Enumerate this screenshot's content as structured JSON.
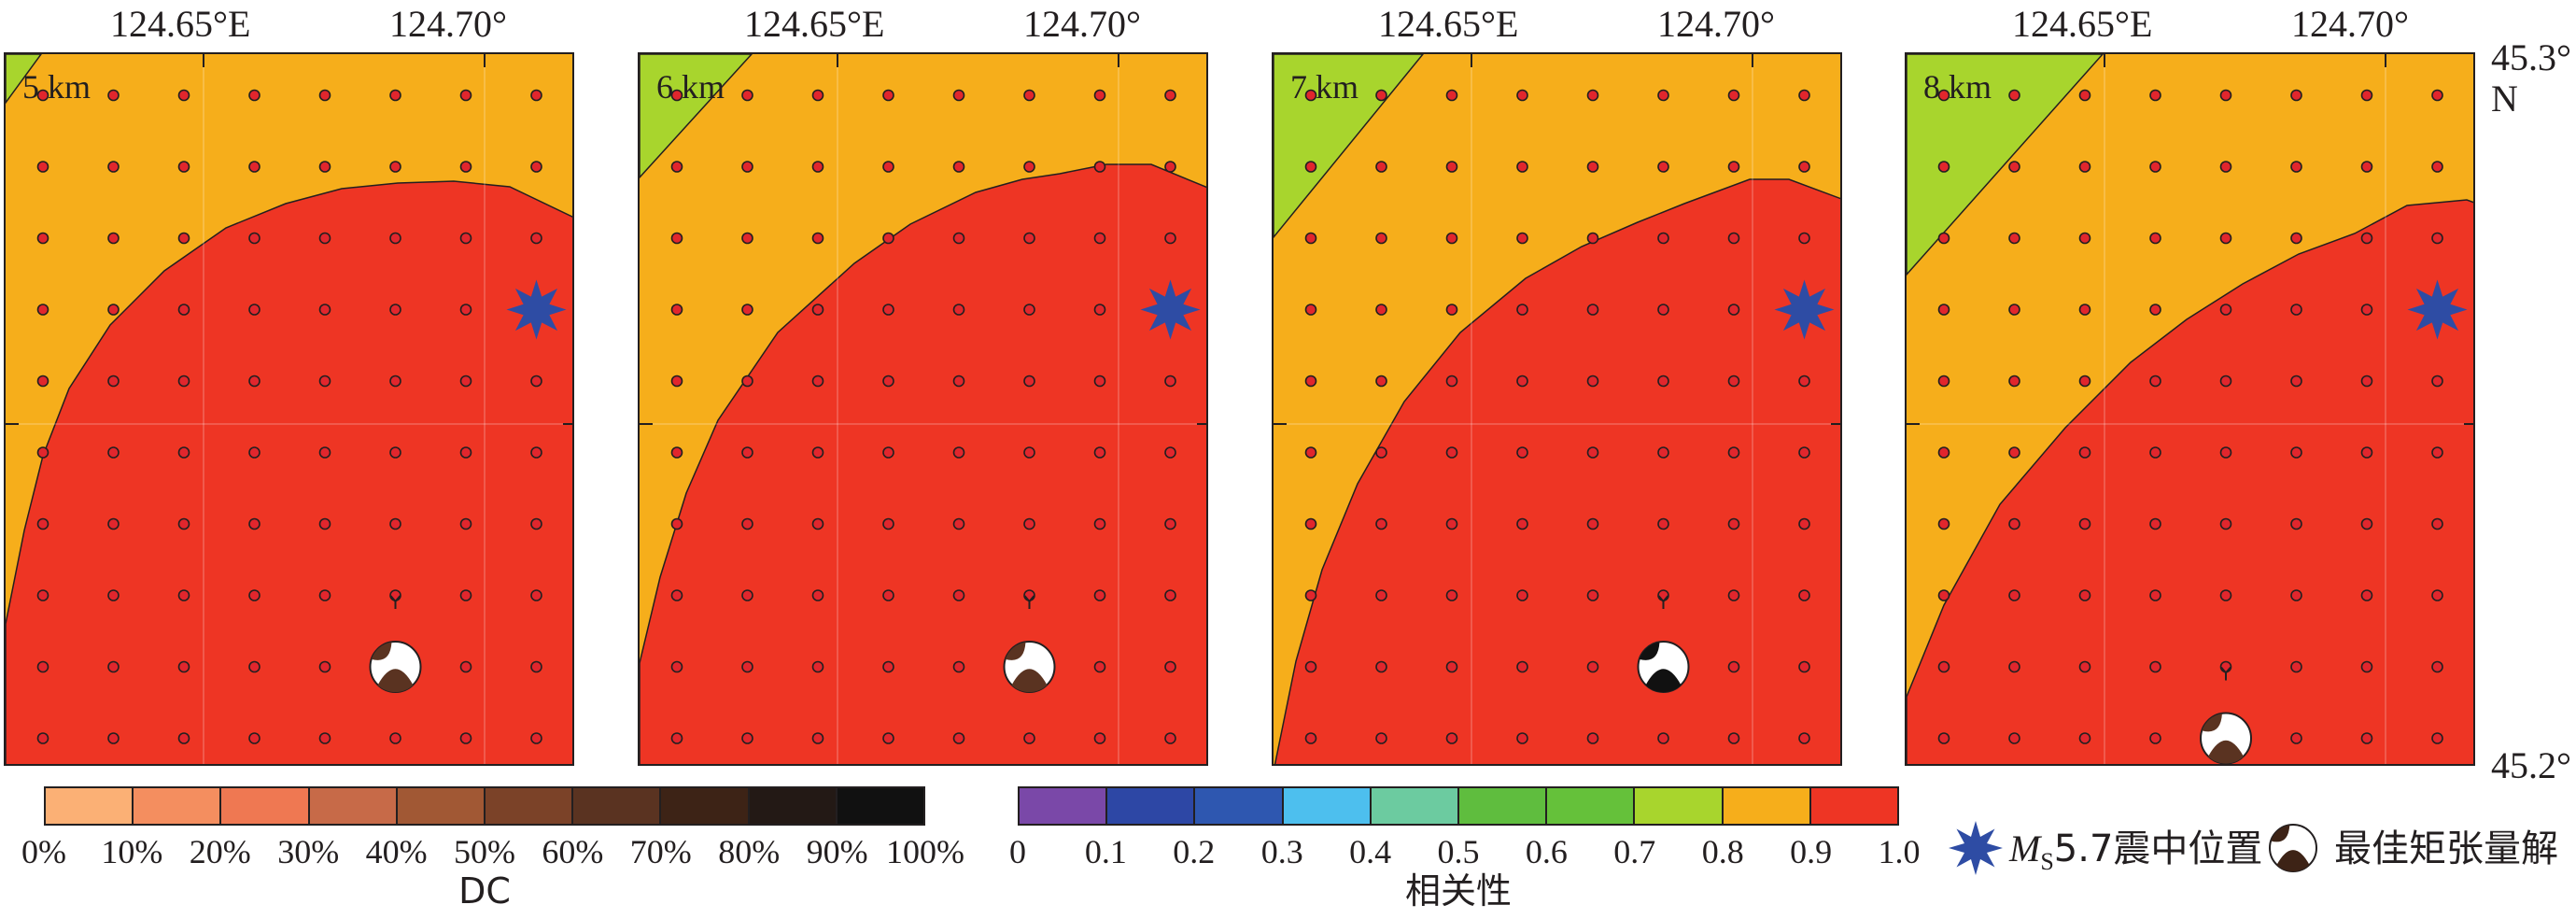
{
  "lon_ticks": [
    {
      "label": "124.65°E"
    },
    {
      "label": "124.70°"
    },
    {
      "label": "124.65°E"
    },
    {
      "label": "124.70°"
    },
    {
      "label": "124.65°E"
    },
    {
      "label": "124.70°"
    },
    {
      "label": "124.65°E"
    },
    {
      "label": "124.70°"
    }
  ],
  "lat_ticks": {
    "top": "45.3°",
    "top_suffix": "N",
    "bottom": "45.2°"
  },
  "panels": [
    {
      "depth_label": "5 km",
      "best_solution": {
        "row": 8,
        "col": 5
      },
      "epicenter": {
        "row": 3,
        "col": 7
      }
    },
    {
      "depth_label": "6 km",
      "best_solution": {
        "row": 8,
        "col": 5
      },
      "epicenter": {
        "row": 3,
        "col": 7
      }
    },
    {
      "depth_label": "7 km",
      "best_solution": {
        "row": 8,
        "col": 5
      },
      "epicenter": {
        "row": 3,
        "col": 7
      }
    },
    {
      "depth_label": "8 km",
      "best_solution": {
        "row": 9,
        "col": 4
      },
      "epicenter": {
        "row": 3,
        "col": 7
      }
    }
  ],
  "dc_colorbar": {
    "colors": [
      "#fbb075",
      "#f48e5f",
      "#ef7852",
      "#c76a48",
      "#a15834",
      "#7b4228",
      "#5a3321",
      "#3d2316",
      "#231915",
      "#111111"
    ],
    "ticks": [
      "0%",
      "10%",
      "20%",
      "30%",
      "40%",
      "50%",
      "60%",
      "70%",
      "80%",
      "90%",
      "100%"
    ],
    "title": "DC"
  },
  "corr_colorbar": {
    "colors": [
      "#7a48a8",
      "#2d47a5",
      "#2e57b0",
      "#4dbfee",
      "#6ccba0",
      "#5fbd3e",
      "#65c13a",
      "#a8d52d",
      "#f6ae1b",
      "#ee3524"
    ],
    "ticks": [
      "0",
      "0.1",
      "0.2",
      "0.3",
      "0.4",
      "0.5",
      "0.6",
      "0.7",
      "0.8",
      "0.9",
      "1.0"
    ],
    "title": "相关性"
  },
  "legend": {
    "epicenter_M": "M",
    "epicenter_sub": "S",
    "epicenter_rest": "5.7震中位置",
    "best_solution": "最佳矩张量解"
  }
}
